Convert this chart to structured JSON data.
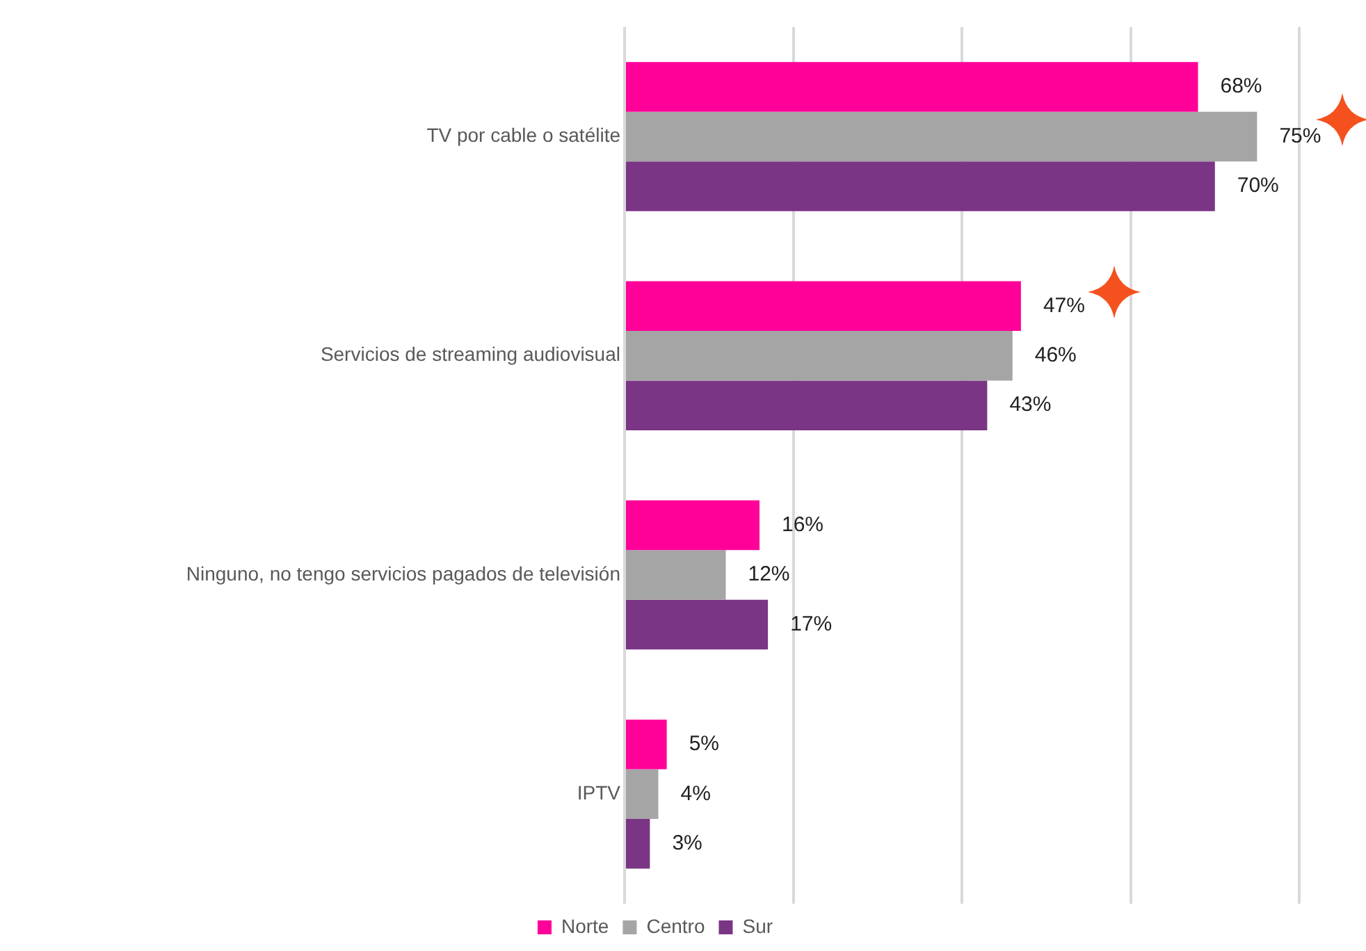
{
  "chart_data": {
    "type": "bar",
    "orientation": "horizontal",
    "categories": [
      "TV por cable o satélite",
      "Servicios de streaming audiovisual",
      "Ninguno, no tengo servicios pagados de televisión",
      "IPTV"
    ],
    "series": [
      {
        "name": "Norte",
        "color": "#ff0099",
        "values": [
          68,
          47,
          16,
          5
        ],
        "value_labels": [
          "68%",
          "47%",
          "16%",
          "5%"
        ]
      },
      {
        "name": "Centro",
        "color": "#a5a5a5",
        "values": [
          75,
          46,
          12,
          4
        ],
        "value_labels": [
          "75%",
          "46%",
          "12%",
          "4%"
        ]
      },
      {
        "name": "Sur",
        "color": "#7a3585",
        "values": [
          70,
          43,
          17,
          3
        ],
        "value_labels": [
          "70%",
          "43%",
          "17%",
          "3%"
        ]
      }
    ],
    "xlim": [
      0,
      80
    ],
    "xticks": [
      {
        "value": 0,
        "label": null
      },
      {
        "value": 20,
        "label": null
      },
      {
        "value": 40,
        "label": null
      },
      {
        "value": 60,
        "label": null
      },
      {
        "value": 80,
        "label": null
      }
    ],
    "tick_labels": "y",
    "grid": "x",
    "legend": "bottom"
  }
}
